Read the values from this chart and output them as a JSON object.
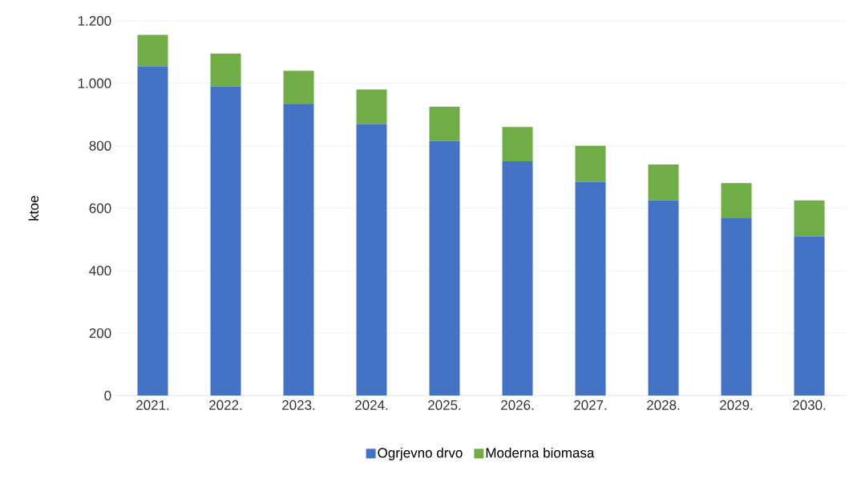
{
  "chart_data": {
    "type": "bar",
    "stacked": true,
    "ylabel": "ktoe",
    "categories": [
      "2021.",
      "2022.",
      "2023.",
      "2024.",
      "2025.",
      "2026.",
      "2027.",
      "2028.",
      "2029.",
      "2030."
    ],
    "series": [
      {
        "name": "Ogrjevno drvo",
        "color": "#4472c4",
        "values": [
          1055,
          990,
          935,
          870,
          815,
          750,
          685,
          625,
          570,
          510
        ]
      },
      {
        "name": "Moderna biomasa",
        "color": "#70ad47",
        "values": [
          100,
          105,
          105,
          110,
          110,
          110,
          115,
          115,
          110,
          115
        ]
      }
    ],
    "ylim": [
      0,
      1200
    ],
    "yticks": [
      0,
      200,
      400,
      600,
      800,
      {
        "value": 1000,
        "label": "1.000"
      },
      {
        "value": 1200,
        "label": "1.200"
      }
    ],
    "grid": "y",
    "legend": "bottom"
  }
}
